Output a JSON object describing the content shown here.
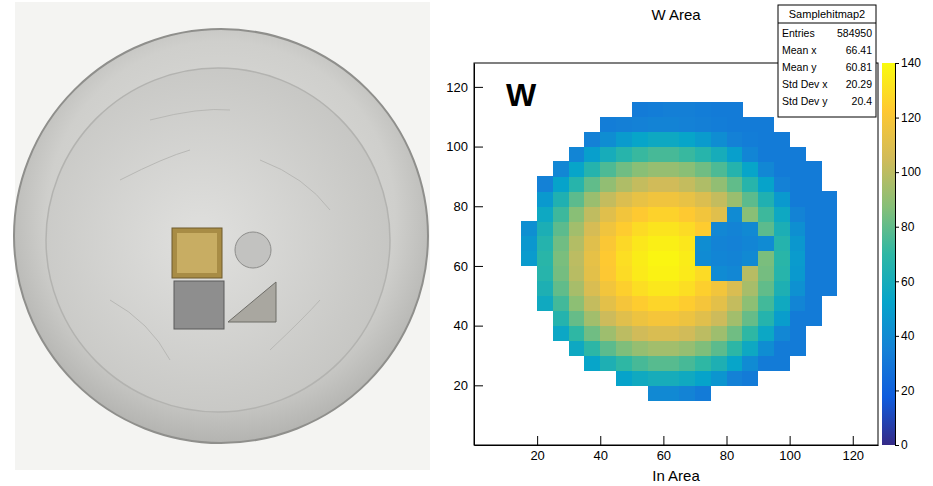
{
  "chart_data": {
    "type": "heatmap",
    "title": "W Area",
    "x_label": "In Area",
    "annotations": [
      "W"
    ],
    "xlim": [
      0,
      128
    ],
    "ylim": [
      0,
      128
    ],
    "xticks": [
      20,
      40,
      60,
      80,
      100,
      120
    ],
    "yticks": [
      20,
      40,
      60,
      80,
      100,
      120
    ],
    "grid": false,
    "zlim": [
      0,
      140
    ],
    "zticks": [
      0,
      20,
      40,
      60,
      80,
      100,
      120,
      140
    ],
    "stats": {
      "title": "Samplehitmap2",
      "rows": [
        {
          "label": "Entries",
          "value": 584950
        },
        {
          "label": "Mean x",
          "value": 66.41
        },
        {
          "label": "Mean y",
          "value": 60.81
        },
        {
          "label": "Std Dev x",
          "value": 20.29
        },
        {
          "label": "Std Dev y",
          "value": 20.4
        }
      ]
    },
    "x_bins": [
      15,
      20,
      25,
      30,
      35,
      40,
      45,
      50,
      55,
      60,
      65,
      70,
      75,
      80,
      85,
      90,
      95,
      100,
      105,
      110,
      115,
      120
    ],
    "y_bins": [
      15,
      20,
      25,
      30,
      35,
      40,
      45,
      50,
      55,
      60,
      65,
      70,
      75,
      80,
      85,
      90,
      95,
      100,
      105,
      110,
      115,
      120
    ],
    "z": [
      [
        null,
        null,
        null,
        null,
        null,
        null,
        null,
        null,
        39,
        39,
        36,
        32,
        null,
        null,
        null,
        null,
        null,
        null,
        null,
        null,
        null
      ],
      [
        null,
        null,
        null,
        null,
        null,
        null,
        52,
        57,
        60,
        60,
        57,
        52,
        45,
        35,
        32,
        null,
        null,
        null,
        null,
        null,
        null
      ],
      [
        null,
        null,
        null,
        null,
        53,
        63,
        70,
        75,
        78,
        78,
        75,
        70,
        63,
        53,
        40,
        32,
        32,
        null,
        null,
        null,
        null
      ],
      [
        null,
        null,
        null,
        56,
        69,
        79,
        86,
        91,
        94,
        94,
        91,
        86,
        79,
        69,
        56,
        41,
        32,
        32,
        null,
        null,
        null
      ],
      [
        null,
        null,
        55,
        70,
        83,
        93,
        100,
        105,
        108,
        108,
        105,
        100,
        93,
        83,
        70,
        55,
        38,
        32,
        null,
        null,
        null
      ],
      [
        null,
        null,
        66,
        81,
        94,
        104,
        111,
        116,
        119,
        119,
        116,
        111,
        104,
        94,
        81,
        66,
        49,
        32,
        32,
        null,
        null
      ],
      [
        null,
        57,
        74,
        89,
        102,
        112,
        119,
        124,
        127,
        127,
        124,
        119,
        112,
        102,
        89,
        74,
        57,
        37,
        32,
        null,
        null
      ],
      [
        null,
        63,
        80,
        95,
        108,
        118,
        125,
        130,
        133,
        133,
        130,
        125,
        118,
        108,
        95,
        80,
        63,
        43,
        32,
        32,
        null
      ],
      [
        null,
        67,
        84,
        99,
        112,
        122,
        129,
        134,
        137,
        137,
        134,
        129,
        40,
        38,
        99,
        84,
        67,
        47,
        32,
        32,
        null
      ],
      [
        48,
        68,
        85,
        100,
        113,
        123,
        130,
        135,
        138,
        138,
        135,
        40,
        37,
        36,
        39,
        85,
        68,
        48,
        32,
        32,
        null
      ],
      [
        46,
        66,
        83,
        98,
        111,
        121,
        128,
        133,
        136,
        136,
        133,
        41,
        36,
        35,
        37,
        40,
        66,
        46,
        32,
        32,
        null
      ],
      [
        42,
        62,
        79,
        94,
        107,
        117,
        124,
        129,
        132,
        132,
        129,
        124,
        38,
        36,
        39,
        79,
        62,
        42,
        32,
        32,
        null
      ],
      [
        null,
        56,
        73,
        88,
        101,
        111,
        118,
        123,
        126,
        126,
        123,
        118,
        111,
        40,
        88,
        73,
        56,
        36,
        32,
        32,
        null
      ],
      [
        null,
        47,
        64,
        79,
        92,
        102,
        109,
        114,
        117,
        117,
        114,
        109,
        102,
        92,
        79,
        64,
        47,
        32,
        32,
        32,
        null
      ],
      [
        null,
        35,
        52,
        67,
        80,
        90,
        97,
        102,
        105,
        105,
        102,
        97,
        90,
        80,
        67,
        52,
        35,
        32,
        32,
        null,
        null
      ],
      [
        null,
        null,
        38,
        53,
        66,
        76,
        83,
        88,
        91,
        91,
        88,
        83,
        76,
        66,
        53,
        38,
        32,
        32,
        32,
        null,
        null
      ],
      [
        null,
        null,
        null,
        37,
        50,
        60,
        67,
        72,
        75,
        75,
        72,
        67,
        60,
        50,
        37,
        32,
        32,
        32,
        null,
        null,
        null
      ],
      [
        null,
        null,
        null,
        null,
        35,
        41,
        48,
        53,
        56,
        56,
        53,
        48,
        41,
        35,
        33,
        32,
        32,
        null,
        null,
        null,
        null
      ],
      [
        null,
        null,
        null,
        null,
        null,
        33,
        34,
        35,
        36,
        36,
        35,
        34,
        33,
        32,
        32,
        32,
        null,
        null,
        null,
        null,
        null
      ],
      [
        null,
        null,
        null,
        null,
        null,
        null,
        null,
        32,
        33,
        34,
        34,
        33,
        32,
        32,
        null,
        null,
        null,
        null,
        null,
        null,
        null
      ],
      [
        null,
        null,
        null,
        null,
        null,
        null,
        null,
        null,
        null,
        null,
        null,
        null,
        null,
        null,
        null,
        null,
        null,
        null,
        null,
        null,
        null
      ]
    ]
  }
}
